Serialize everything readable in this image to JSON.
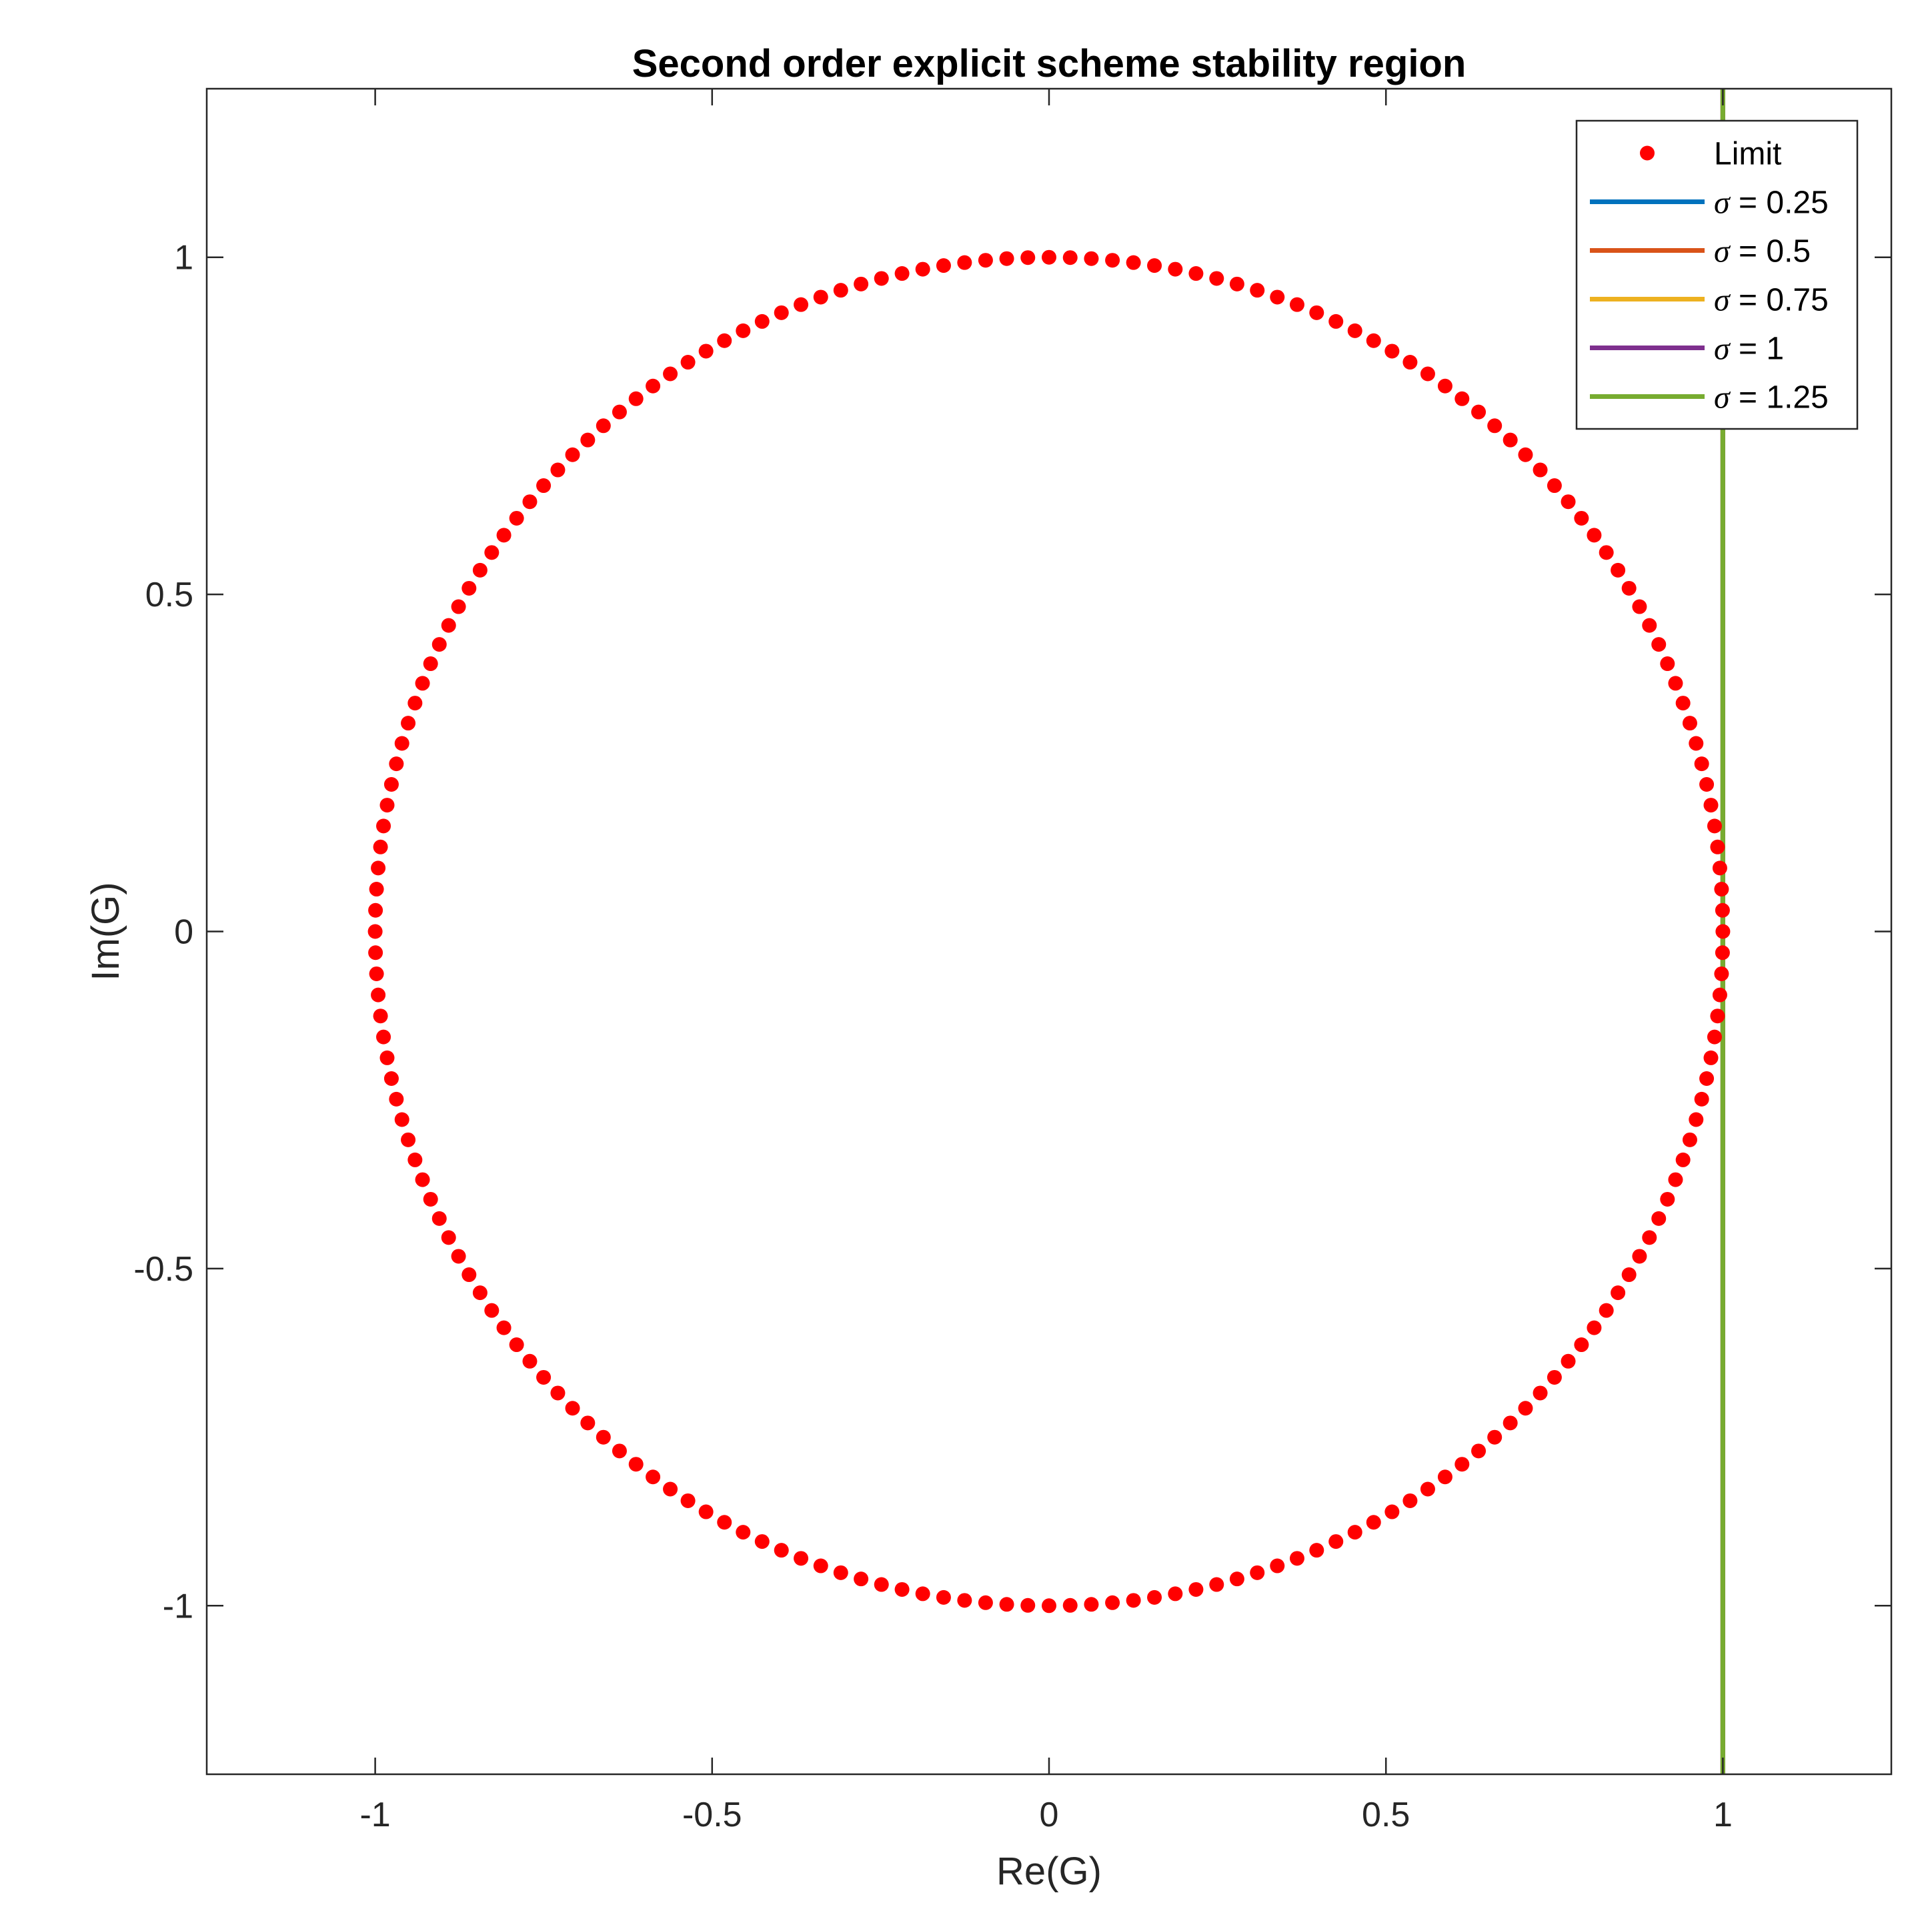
{
  "chart_data": {
    "type": "scatter",
    "title": "Second order explicit scheme stability region",
    "xlabel": "Re(G)",
    "ylabel": "Im(G)",
    "xlim": [
      -1.25,
      1.25
    ],
    "ylim": [
      -1.25,
      1.25
    ],
    "xticks": [
      -1,
      -0.5,
      0,
      0.5,
      1
    ],
    "yticks": [
      -1,
      -0.5,
      0,
      0.5,
      1
    ],
    "xtick_labels": [
      "-1",
      "-0.5",
      "0",
      "0.5",
      "1"
    ],
    "ytick_labels": [
      "-1",
      "-0.5",
      "0",
      "0.5",
      "1"
    ],
    "grid": false,
    "legend_position": "top-right",
    "series": [
      {
        "name": "Limit",
        "kind": "markers",
        "color": "#ff0000",
        "shape": "unit circle",
        "center": [
          0,
          0
        ],
        "radius": 1,
        "point_count": 200
      },
      {
        "name": "σ = 0.25",
        "sigma_symbol": "σ",
        "sigma_value": "0.25",
        "kind": "line",
        "color": "#0072bd",
        "x": [
          1,
          1
        ],
        "y": [
          -1.25,
          1.25
        ]
      },
      {
        "name": "σ = 0.5",
        "sigma_symbol": "σ",
        "sigma_value": "0.5",
        "kind": "line",
        "color": "#d95319",
        "x": [
          1,
          1
        ],
        "y": [
          -1.25,
          1.25
        ]
      },
      {
        "name": "σ = 0.75",
        "sigma_symbol": "σ",
        "sigma_value": "0.75",
        "kind": "line",
        "color": "#edb120",
        "x": [
          1,
          1
        ],
        "y": [
          -1.25,
          1.25
        ]
      },
      {
        "name": "σ = 1",
        "sigma_symbol": "σ",
        "sigma_value": "1",
        "kind": "line",
        "color": "#7e2f8e",
        "x": [
          1,
          1
        ],
        "y": [
          -1.25,
          1.25
        ]
      },
      {
        "name": "σ = 1.25",
        "sigma_symbol": "σ",
        "sigma_value": "1.25",
        "kind": "line",
        "color": "#77ac30",
        "x": [
          1,
          1
        ],
        "y": [
          -1.25,
          1.25
        ]
      }
    ]
  }
}
